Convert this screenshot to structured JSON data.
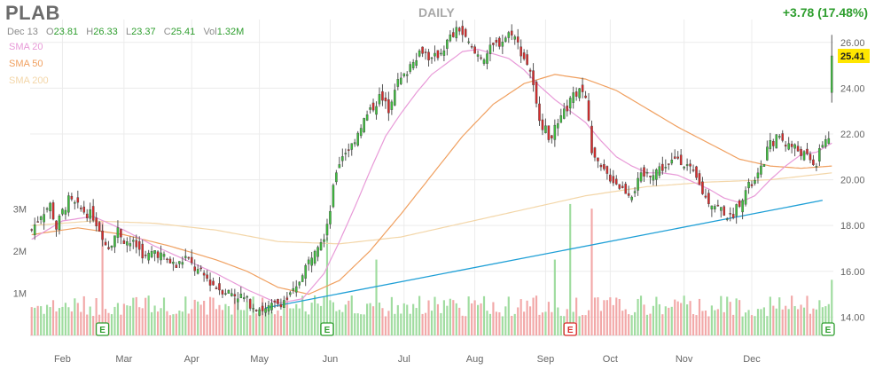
{
  "header": {
    "ticker": "PLAB",
    "period": "DAILY",
    "change": "+3.78 (17.48%)",
    "date": "Dec 13",
    "open_label": "O",
    "open": "23.81",
    "high_label": "H",
    "high": "26.33",
    "low_label": "L",
    "low": "23.37",
    "close_label": "C",
    "close": "25.41",
    "vol_label": "Vol",
    "vol": "1.32M"
  },
  "legend": [
    {
      "label": "SMA 20",
      "color": "#e89ad8"
    },
    {
      "label": "SMA 50",
      "color": "#f0a060"
    },
    {
      "label": "SMA 200",
      "color": "#f3d6a8"
    }
  ],
  "colors": {
    "up": "#3dbf3d",
    "down": "#d92b2b",
    "up_volume": "#9fdc9f",
    "down_volume": "#f2a8a8",
    "trendline": "#1e9fd6",
    "grid": "#ececec",
    "axis_text": "#666666",
    "last_price_bg": "#ffe600"
  },
  "chart_data": {
    "type": "candlestick",
    "x_months": [
      "Feb",
      "Mar",
      "Apr",
      "May",
      "Jun",
      "Jul",
      "Aug",
      "Sep",
      "Oct",
      "Nov",
      "Dec"
    ],
    "month_day_index": [
      10,
      30,
      52,
      74,
      97,
      121,
      144,
      167,
      188,
      212,
      234
    ],
    "price_ticks": [
      "14.00",
      "16.00",
      "18.00",
      "20.00",
      "22.00",
      "24.00",
      "26.00"
    ],
    "price_tick_values": [
      14,
      16,
      18,
      20,
      22,
      24,
      26
    ],
    "ylim": [
      13.2,
      27.0
    ],
    "volume_ticks": [
      "1M",
      "2M",
      "3M"
    ],
    "volume_tick_values": [
      1,
      2,
      3
    ],
    "volume_max": 7.5,
    "last_price": "25.41",
    "trendline": {
      "start_day": 76,
      "start_price": 14.4,
      "end_day": 258,
      "end_price": 19.1
    },
    "earnings": [
      {
        "day": 23,
        "label": "E",
        "color": "#2e9e2e"
      },
      {
        "day": 96,
        "label": "E",
        "color": "#2e9e2e"
      },
      {
        "day": 175,
        "label": "E",
        "color": "#d92b2b"
      },
      {
        "day": 260,
        "label": "E",
        "color": "#2e9e2e"
      }
    ],
    "close_keypoints": [
      [
        0,
        17.8
      ],
      [
        3,
        18.5
      ],
      [
        6,
        18.9
      ],
      [
        8,
        17.9
      ],
      [
        10,
        18.6
      ],
      [
        12,
        19.1
      ],
      [
        16,
        18.7
      ],
      [
        20,
        18.4
      ],
      [
        23,
        17.6
      ],
      [
        25,
        17.1
      ],
      [
        28,
        17.8
      ],
      [
        30,
        17.4
      ],
      [
        34,
        17.1
      ],
      [
        37,
        16.6
      ],
      [
        40,
        16.9
      ],
      [
        44,
        16.5
      ],
      [
        47,
        16.2
      ],
      [
        50,
        16.6
      ],
      [
        53,
        16.1
      ],
      [
        56,
        15.8
      ],
      [
        60,
        15.3
      ],
      [
        64,
        15.1
      ],
      [
        68,
        14.9
      ],
      [
        72,
        14.5
      ],
      [
        76,
        14.3
      ],
      [
        80,
        14.6
      ],
      [
        83,
        14.8
      ],
      [
        86,
        15.2
      ],
      [
        88,
        16.0
      ],
      [
        90,
        16.4
      ],
      [
        92,
        17.1
      ],
      [
        95,
        17.6
      ],
      [
        97,
        18.7
      ],
      [
        99,
        20.4
      ],
      [
        101,
        21.1
      ],
      [
        104,
        21.5
      ],
      [
        107,
        22.4
      ],
      [
        110,
        23.0
      ],
      [
        113,
        23.6
      ],
      [
        116,
        23.1
      ],
      [
        118,
        24.1
      ],
      [
        121,
        24.5
      ],
      [
        124,
        25.3
      ],
      [
        127,
        25.7
      ],
      [
        130,
        25.2
      ],
      [
        133,
        25.6
      ],
      [
        136,
        26.2
      ],
      [
        139,
        26.6
      ],
      [
        141,
        26.1
      ],
      [
        144,
        25.5
      ],
      [
        147,
        25.4
      ],
      [
        150,
        25.8
      ],
      [
        153,
        26.1
      ],
      [
        156,
        26.5
      ],
      [
        159,
        25.6
      ],
      [
        162,
        24.8
      ],
      [
        164,
        23.2
      ],
      [
        166,
        22.4
      ],
      [
        168,
        21.9
      ],
      [
        171,
        22.3
      ],
      [
        173,
        22.9
      ],
      [
        175,
        23.4
      ],
      [
        178,
        24.0
      ],
      [
        180,
        23.6
      ],
      [
        182,
        21.3
      ],
      [
        184,
        20.6
      ],
      [
        186,
        20.3
      ],
      [
        189,
        20.0
      ],
      [
        192,
        19.6
      ],
      [
        195,
        19.4
      ],
      [
        198,
        20.1
      ],
      [
        201,
        20.3
      ],
      [
        204,
        20.5
      ],
      [
        207,
        20.6
      ],
      [
        210,
        21.0
      ],
      [
        213,
        20.6
      ],
      [
        216,
        20.0
      ],
      [
        219,
        19.2
      ],
      [
        222,
        18.9
      ],
      [
        225,
        18.6
      ],
      [
        227,
        18.3
      ],
      [
        229,
        18.8
      ],
      [
        231,
        19.3
      ],
      [
        233,
        19.7
      ],
      [
        235,
        19.9
      ],
      [
        237,
        20.4
      ],
      [
        239,
        21.3
      ],
      [
        241,
        21.7
      ],
      [
        243,
        21.9
      ],
      [
        245,
        21.6
      ],
      [
        248,
        21.4
      ],
      [
        251,
        21.1
      ],
      [
        253,
        20.8
      ],
      [
        255,
        20.7
      ],
      [
        257,
        21.6
      ],
      [
        259,
        21.9
      ],
      [
        260,
        25.41
      ]
    ],
    "sma20_keypoints": [
      [
        0,
        17.4
      ],
      [
        10,
        18.2
      ],
      [
        20,
        18.4
      ],
      [
        30,
        17.8
      ],
      [
        40,
        17.1
      ],
      [
        50,
        16.5
      ],
      [
        60,
        15.9
      ],
      [
        70,
        15.2
      ],
      [
        80,
        14.6
      ],
      [
        88,
        14.8
      ],
      [
        95,
        15.9
      ],
      [
        100,
        17.3
      ],
      [
        105,
        18.8
      ],
      [
        110,
        20.4
      ],
      [
        115,
        21.9
      ],
      [
        120,
        22.9
      ],
      [
        125,
        23.8
      ],
      [
        130,
        24.6
      ],
      [
        135,
        25.1
      ],
      [
        140,
        25.6
      ],
      [
        145,
        25.7
      ],
      [
        150,
        25.5
      ],
      [
        155,
        25.3
      ],
      [
        160,
        24.8
      ],
      [
        165,
        24.1
      ],
      [
        170,
        23.5
      ],
      [
        175,
        23.0
      ],
      [
        180,
        22.5
      ],
      [
        185,
        21.7
      ],
      [
        190,
        21.0
      ],
      [
        195,
        20.6
      ],
      [
        200,
        20.3
      ],
      [
        205,
        20.3
      ],
      [
        210,
        20.2
      ],
      [
        215,
        19.9
      ],
      [
        220,
        19.6
      ],
      [
        225,
        19.2
      ],
      [
        230,
        19.0
      ],
      [
        235,
        19.3
      ],
      [
        240,
        20.0
      ],
      [
        245,
        20.6
      ],
      [
        250,
        21.1
      ],
      [
        255,
        21.2
      ],
      [
        260,
        21.6
      ]
    ],
    "sma50_keypoints": [
      [
        0,
        17.6
      ],
      [
        15,
        17.9
      ],
      [
        30,
        17.6
      ],
      [
        45,
        17.1
      ],
      [
        60,
        16.5
      ],
      [
        70,
        16.0
      ],
      [
        80,
        15.3
      ],
      [
        90,
        15.0
      ],
      [
        100,
        15.6
      ],
      [
        110,
        16.9
      ],
      [
        120,
        18.5
      ],
      [
        130,
        20.2
      ],
      [
        140,
        21.9
      ],
      [
        150,
        23.3
      ],
      [
        160,
        24.2
      ],
      [
        170,
        24.6
      ],
      [
        180,
        24.4
      ],
      [
        190,
        23.9
      ],
      [
        200,
        23.1
      ],
      [
        210,
        22.3
      ],
      [
        220,
        21.6
      ],
      [
        230,
        20.9
      ],
      [
        240,
        20.6
      ],
      [
        250,
        20.5
      ],
      [
        260,
        20.6
      ]
    ],
    "sma200_keypoints": [
      [
        0,
        18.0
      ],
      [
        20,
        18.2
      ],
      [
        40,
        18.1
      ],
      [
        60,
        17.8
      ],
      [
        80,
        17.3
      ],
      [
        100,
        17.2
      ],
      [
        120,
        17.5
      ],
      [
        140,
        18.1
      ],
      [
        160,
        18.7
      ],
      [
        180,
        19.3
      ],
      [
        200,
        19.7
      ],
      [
        220,
        19.9
      ],
      [
        240,
        20.0
      ],
      [
        260,
        20.3
      ]
    ]
  }
}
